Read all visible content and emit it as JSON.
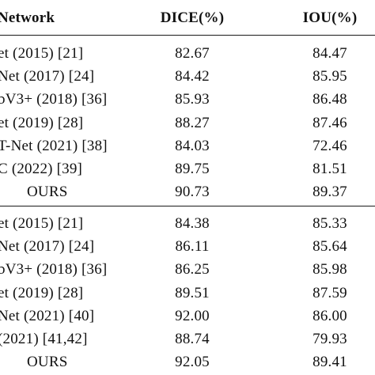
{
  "table": {
    "headers": [
      "Network",
      "DICE(%)",
      "IOU(%)"
    ],
    "group1": [
      {
        "network": "et (2015) [21]",
        "dice": "82.67",
        "iou": "84.47"
      },
      {
        "network": "Net (2017) [24]",
        "dice": "84.42",
        "iou": "85.95"
      },
      {
        "network": "bV3+ (2018) [36]",
        "dice": "85.93",
        "iou": "86.48"
      },
      {
        "network": "et (2019) [28]",
        "dice": "88.27",
        "iou": "87.46"
      },
      {
        "network": "T-Net (2021) [38]",
        "dice": "84.03",
        "iou": "72.46"
      },
      {
        "network": "C (2022) [39]",
        "dice": "89.75",
        "iou": "81.51"
      },
      {
        "network": "OURS",
        "dice": "90.73",
        "iou": "89.37"
      }
    ],
    "group2": [
      {
        "network": "et (2015) [21]",
        "dice": "84.38",
        "iou": "85.33"
      },
      {
        "network": "Net (2017) [24]",
        "dice": "86.11",
        "iou": "85.64"
      },
      {
        "network": "bV3+ (2018) [36]",
        "dice": "86.25",
        "iou": "85.98"
      },
      {
        "network": "et (2019) [28]",
        "dice": "89.51",
        "iou": "87.59"
      },
      {
        "network": "Net (2021) [40]",
        "dice": "92.00",
        "iou": "86.00"
      },
      {
        "network": "(2021) [41,42]",
        "dice": "88.74",
        "iou": "79.93"
      },
      {
        "network": "OURS",
        "dice": "92.05",
        "iou": "89.41"
      }
    ]
  }
}
